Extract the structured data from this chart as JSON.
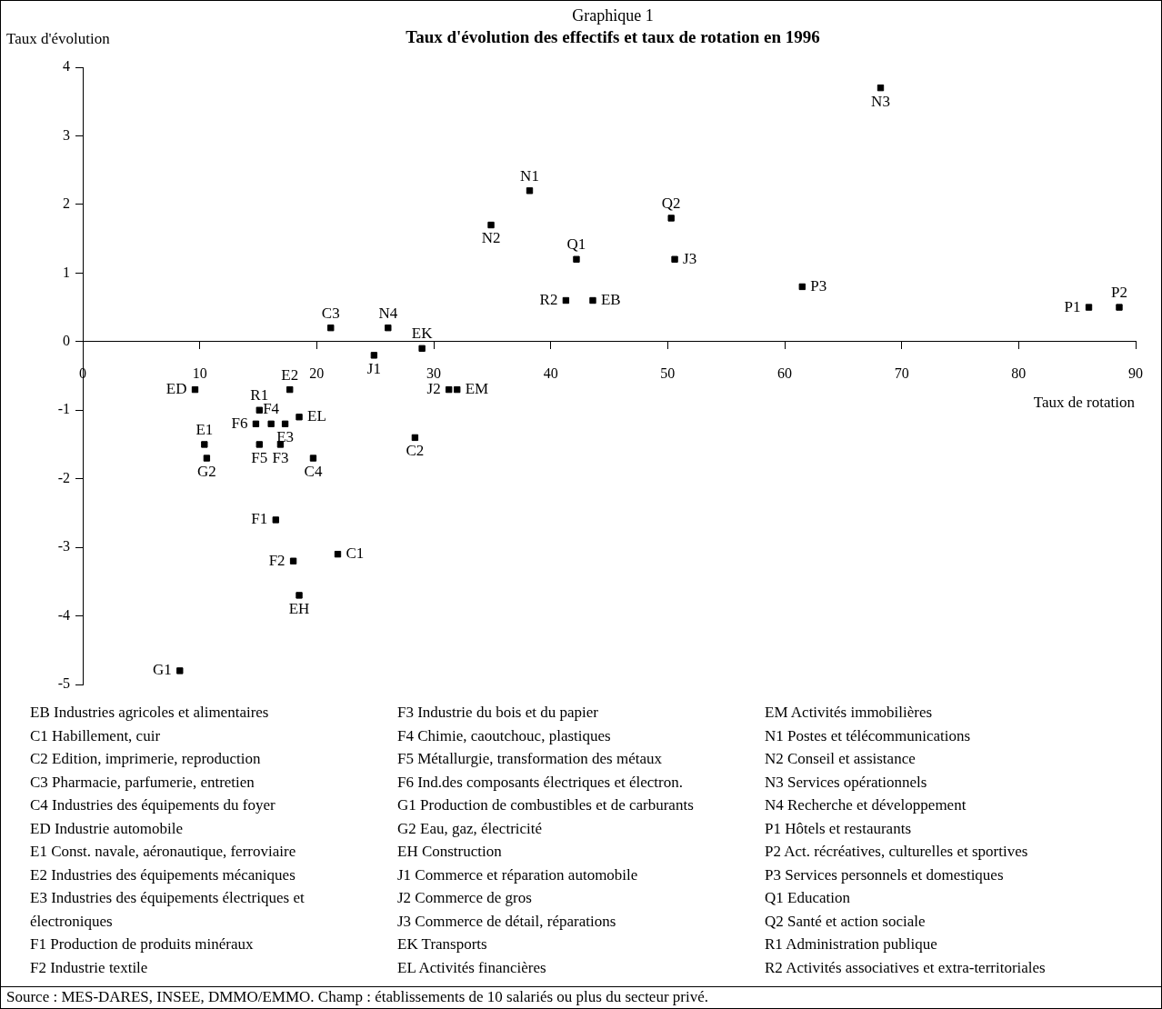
{
  "chart_data": {
    "type": "scatter",
    "title": "Graphique 1",
    "subtitle": "Taux d'évolution des effectifs et taux de rotation en 1996",
    "xlabel": "Taux de rotation",
    "ylabel": "Taux d'évolution",
    "x": [
      43.6,
      21.8,
      28.4,
      21.2,
      19.7,
      9.6,
      10.4,
      17.7,
      17.3,
      16.5,
      18.0,
      16.9,
      16.1,
      15.1,
      14.8,
      8.3,
      10.6,
      18.5,
      24.9,
      31.3,
      50.6,
      29.0,
      18.5,
      32.0,
      38.2,
      34.9,
      68.2,
      26.1,
      86.0,
      88.6,
      61.5,
      42.2,
      50.3,
      15.1,
      41.3
    ],
    "values": [
      0.6,
      -3.1,
      -1.4,
      0.2,
      -1.7,
      -0.7,
      -1.5,
      -0.7,
      -1.2,
      -2.6,
      -3.2,
      -1.5,
      -1.2,
      -1.5,
      -1.2,
      -4.8,
      -1.7,
      -3.7,
      -0.2,
      -0.7,
      1.2,
      -0.1,
      -1.1,
      -0.7,
      2.2,
      1.7,
      3.7,
      0.2,
      0.5,
      0.5,
      0.8,
      1.2,
      1.8,
      -1.0,
      0.6
    ],
    "value_labels": [
      "EB",
      "C1",
      "C2",
      "C3",
      "C4",
      "ED",
      "E1",
      "E2",
      "E3",
      "F1",
      "F2",
      "F3",
      "F4",
      "F5",
      "F6",
      "G1",
      "G2",
      "EH",
      "J1",
      "J2",
      "J3",
      "EK",
      "EL",
      "EM",
      "N1",
      "N2",
      "N3",
      "N4",
      "P1",
      "P2",
      "P3",
      "Q1",
      "Q2",
      "R1",
      "R2"
    ],
    "color": "#000000",
    "marker": "square",
    "grid": false,
    "legend": false,
    "xlim": [
      0,
      90
    ],
    "xticks": [
      0,
      10,
      20,
      30,
      40,
      50,
      60,
      70,
      80,
      90
    ],
    "ylim": [
      -5,
      4
    ],
    "yticks": [
      -5,
      -4,
      -3,
      -2,
      -1,
      0,
      1,
      2,
      3,
      4
    ],
    "annotations": [
      "EB Industries agricoles et alimentaires",
      "C1 Habillement, cuir",
      "C2 Edition, imprimerie, reproduction",
      "C3 Pharmacie, parfumerie, entretien",
      "C4 Industries des équipements du foyer",
      "ED Industrie automobile",
      "E1 Const. navale, aéronautique, ferroviaire",
      "E2 Industries des équipements mécaniques",
      "E3 Industries des équipements électriques et électroniques",
      "F1 Production de produits minéraux",
      "F2 Industrie textile",
      "F3 Industrie du bois et du papier",
      "F4 Chimie, caoutchouc, plastiques",
      "F5 Métallurgie, transformation des métaux",
      "F6 Ind.des composants électriques et électron.",
      "G1 Production de combustibles et de carburants",
      "G2 Eau, gaz, électricité",
      "EH Construction",
      "J1 Commerce et réparation automobile",
      "J2 Commerce de gros",
      "J3 Commerce de détail, réparations",
      "EK Transports",
      "EL Activités financières",
      "EM Activités immobilières",
      "N1 Postes et télécommunications",
      "N2 Conseil et assistance",
      "N3 Services opérationnels",
      "N4 Recherche et développement",
      "P1 Hôtels et restaurants",
      "P2 Act. récréatives, culturelles et sportives",
      "P3 Services personnels et domestiques",
      "Q1 Education",
      "Q2 Santé et action sociale",
      "R1 Administration publique",
      "R2 Activités associatives et extra-territoriales",
      "Source : MES-DARES, INSEE, DMMO/EMMO. Champ : établissements de 10 salariés ou plus du secteur privé."
    ]
  }
}
